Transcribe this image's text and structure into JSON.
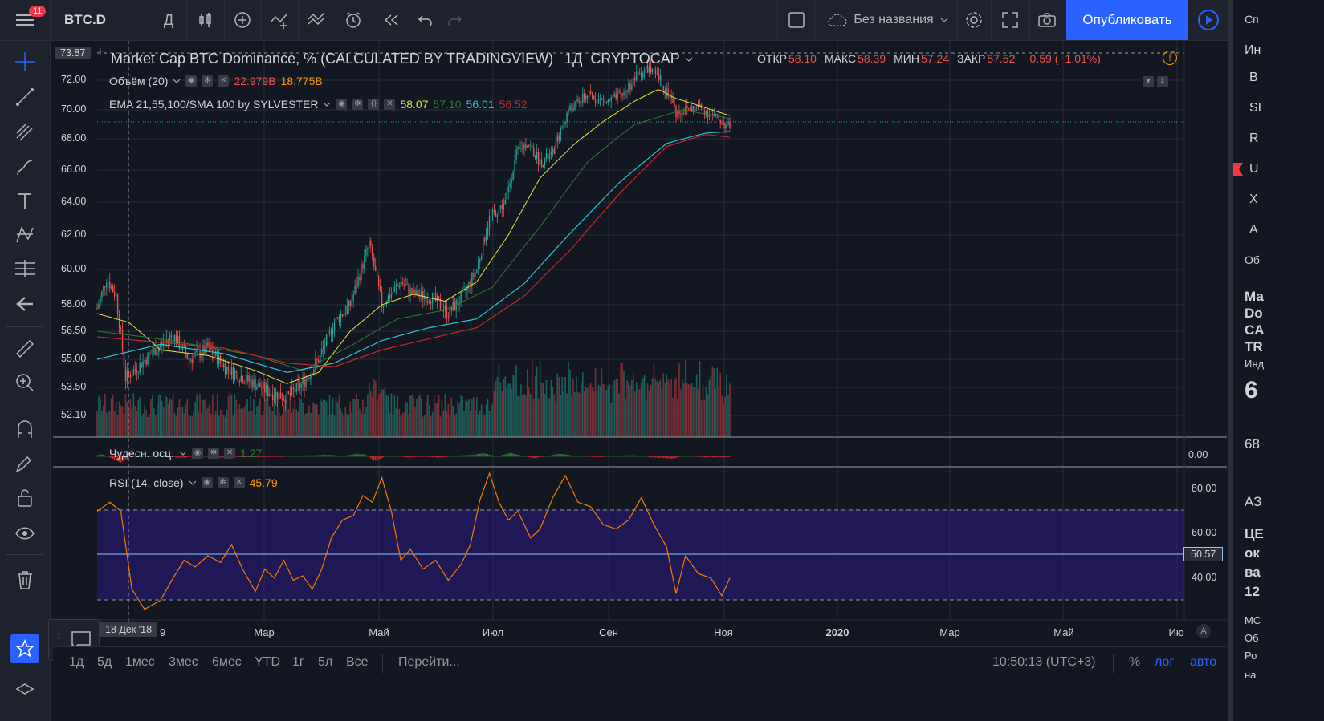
{
  "toolbar": {
    "symbol": "BTC.D",
    "interval": "Д",
    "notif_count": "11",
    "layout_name": "Без названия",
    "publish_label": "Опубликовать"
  },
  "legend": {
    "title": "Market Cap BTC Dominance, % (CALCULATED BY TRADINGVIEW)",
    "timeframe": "1Д",
    "exchange": "CRYPTOCAP",
    "open_label": "ОТКР",
    "open": "58.10",
    "high_label": "МАКС",
    "high": "58.39",
    "low_label": "МИН",
    "low": "57.24",
    "close_label": "ЗАКР",
    "close": "57.52",
    "change": "−0.59 (−1.01%)",
    "volume_label": "Объём (20)",
    "volume_v1": "22.979B",
    "volume_v2": "18.775B",
    "ema_label": "EMA 21,55,100/SMA 100 by SYLVESTER",
    "ema1": "58.07",
    "ema2": "57.10",
    "ema3": "56.01",
    "sma": "56.52",
    "ao_label": "Чудесн. осц.",
    "ao_value": "1.27",
    "rsi_label": "RSI (14, close)",
    "rsi_value": "45.79"
  },
  "price_scale": [
    "72.00",
    "70.00",
    "68.00",
    "66.00",
    "64.00",
    "62.00",
    "60.00",
    "58.00",
    "56.50",
    "55.00",
    "53.50",
    "52.10"
  ],
  "crosshair_price": "73.87",
  "ao_scale": "0.00",
  "rsi_scale": [
    "80.00",
    "60.00",
    "40.00"
  ],
  "rsi_current": "50.57",
  "time_axis": [
    "Мар",
    "Май",
    "Июл",
    "Сен",
    "Ноя",
    "2020",
    "Мар",
    "Май",
    "Ию"
  ],
  "crosshair_date": "18 Дек '18",
  "crosshair_date_suffix": "9",
  "ranges": [
    "1д",
    "5д",
    "1мес",
    "3мес",
    "6мес",
    "YTD",
    "1г",
    "5л",
    "Все"
  ],
  "goto_label": "Перейти...",
  "clock": "10:50:13 (UTC+3)",
  "scale_opts": {
    "pct": "%",
    "log": "лог",
    "auto": "авто"
  },
  "right_panel": {
    "items": [
      "Сп",
      "Ин",
      "В",
      "SI",
      "R",
      "U",
      "X",
      "A",
      "Об"
    ],
    "info": [
      "Ма",
      "Do",
      "CA",
      "TR",
      "Инд",
      "6",
      "68",
      "АЗ",
      "ЦЕ",
      "ок",
      "ва",
      "12",
      "МС",
      "Об",
      "Ро",
      "на"
    ]
  },
  "colors": {
    "background": "#131722",
    "up": "#26a69a",
    "down": "#ef5350",
    "ema1": "#e8e33f",
    "ema2": "#2e7d32",
    "ema3": "#26c6da",
    "sma": "#c62828",
    "rsi": "#f57c00",
    "accent": "#2962ff"
  },
  "chart_data": {
    "type": "candlestick",
    "title": "Market Cap BTC Dominance, % (CALCULATED BY TRADINGVIEW)",
    "x_range": [
      "2018-12",
      "2020-06"
    ],
    "ylim": [
      51.5,
      73.87
    ],
    "last_ohlc": {
      "open": 58.1,
      "high": 58.39,
      "low": 57.24,
      "close": 57.52
    },
    "price_path": [
      [
        0,
        57.8
      ],
      [
        6,
        59.5
      ],
      [
        12,
        58.5
      ],
      [
        18,
        54
      ],
      [
        28,
        54.8
      ],
      [
        38,
        55.6
      ],
      [
        48,
        56.3
      ],
      [
        58,
        55
      ],
      [
        70,
        55.6
      ],
      [
        82,
        54.5
      ],
      [
        95,
        53.9
      ],
      [
        108,
        53.3
      ],
      [
        120,
        53
      ],
      [
        130,
        53.7
      ],
      [
        140,
        55
      ],
      [
        150,
        57
      ],
      [
        160,
        58
      ],
      [
        172,
        61.5
      ],
      [
        180,
        58
      ],
      [
        192,
        59.3
      ],
      [
        200,
        58.6
      ],
      [
        212,
        58.4
      ],
      [
        222,
        57.5
      ],
      [
        232,
        58.6
      ],
      [
        240,
        60
      ],
      [
        248,
        63
      ],
      [
        258,
        64
      ],
      [
        265,
        67
      ],
      [
        272,
        67.8
      ],
      [
        280,
        66.5
      ],
      [
        288,
        67
      ],
      [
        298,
        70
      ],
      [
        310,
        71
      ],
      [
        322,
        70.5
      ],
      [
        332,
        71
      ],
      [
        342,
        72.4
      ],
      [
        348,
        72.8
      ],
      [
        356,
        72
      ],
      [
        362,
        71
      ],
      [
        366,
        69.8
      ],
      [
        372,
        70
      ],
      [
        380,
        70.2
      ],
      [
        386,
        69.8
      ],
      [
        392,
        69.4
      ],
      [
        400,
        68.8
      ]
    ],
    "ema21_path": [
      [
        0,
        57.5
      ],
      [
        20,
        57
      ],
      [
        40,
        55.5
      ],
      [
        70,
        55.2
      ],
      [
        100,
        54.4
      ],
      [
        120,
        53.7
      ],
      [
        140,
        54.3
      ],
      [
        160,
        56.5
      ],
      [
        180,
        58
      ],
      [
        200,
        58.6
      ],
      [
        220,
        58.2
      ],
      [
        240,
        59.3
      ],
      [
        260,
        62
      ],
      [
        280,
        65.5
      ],
      [
        300,
        67.5
      ],
      [
        320,
        69.2
      ],
      [
        340,
        70.6
      ],
      [
        355,
        71.4
      ],
      [
        365,
        70.8
      ],
      [
        380,
        70.3
      ],
      [
        400,
        69.6
      ]
    ],
    "ema55_path": [
      [
        0,
        56.5
      ],
      [
        30,
        56.2
      ],
      [
        60,
        55.8
      ],
      [
        100,
        55.2
      ],
      [
        130,
        54.4
      ],
      [
        160,
        55.7
      ],
      [
        190,
        57.2
      ],
      [
        220,
        57.7
      ],
      [
        250,
        59
      ],
      [
        280,
        62.5
      ],
      [
        310,
        66.5
      ],
      [
        340,
        69
      ],
      [
        370,
        70
      ],
      [
        400,
        69.4
      ]
    ],
    "ema100_path": [
      [
        0,
        55
      ],
      [
        40,
        55.8
      ],
      [
        80,
        55.3
      ],
      [
        120,
        54.3
      ],
      [
        150,
        54.8
      ],
      [
        180,
        56
      ],
      [
        210,
        56.7
      ],
      [
        240,
        57.2
      ],
      [
        270,
        59.2
      ],
      [
        300,
        62.2
      ],
      [
        330,
        65.2
      ],
      [
        360,
        67.7
      ],
      [
        385,
        68.4
      ],
      [
        400,
        68.5
      ]
    ],
    "sma100_path": [
      [
        0,
        56.2
      ],
      [
        40,
        55.9
      ],
      [
        80,
        55.6
      ],
      [
        120,
        54.8
      ],
      [
        150,
        54.6
      ],
      [
        180,
        55.5
      ],
      [
        210,
        56.1
      ],
      [
        240,
        56.7
      ],
      [
        270,
        58.5
      ],
      [
        300,
        61.2
      ],
      [
        330,
        64.5
      ],
      [
        360,
        67.5
      ],
      [
        385,
        68.3
      ],
      [
        400,
        68.1
      ]
    ],
    "rsi_ylim": [
      20,
      90
    ],
    "rsi_path": [
      [
        0,
        70
      ],
      [
        8,
        74
      ],
      [
        15,
        70
      ],
      [
        22,
        35
      ],
      [
        30,
        26
      ],
      [
        40,
        30
      ],
      [
        48,
        40
      ],
      [
        55,
        48
      ],
      [
        62,
        45
      ],
      [
        70,
        50
      ],
      [
        78,
        47
      ],
      [
        85,
        55
      ],
      [
        92,
        44
      ],
      [
        100,
        34
      ],
      [
        106,
        44
      ],
      [
        112,
        40
      ],
      [
        118,
        48
      ],
      [
        124,
        39
      ],
      [
        130,
        41
      ],
      [
        136,
        35
      ],
      [
        142,
        44
      ],
      [
        148,
        58
      ],
      [
        155,
        66
      ],
      [
        162,
        68
      ],
      [
        168,
        77
      ],
      [
        174,
        74
      ],
      [
        180,
        85
      ],
      [
        186,
        70
      ],
      [
        192,
        48
      ],
      [
        198,
        53
      ],
      [
        206,
        44
      ],
      [
        214,
        48
      ],
      [
        222,
        39
      ],
      [
        230,
        46
      ],
      [
        236,
        55
      ],
      [
        242,
        75
      ],
      [
        248,
        87
      ],
      [
        254,
        74
      ],
      [
        260,
        66
      ],
      [
        266,
        70
      ],
      [
        274,
        58
      ],
      [
        280,
        62
      ],
      [
        288,
        76
      ],
      [
        296,
        86
      ],
      [
        304,
        74
      ],
      [
        312,
        72
      ],
      [
        320,
        64
      ],
      [
        328,
        62
      ],
      [
        336,
        66
      ],
      [
        344,
        76
      ],
      [
        352,
        64
      ],
      [
        360,
        54
      ],
      [
        366,
        33
      ],
      [
        372,
        50
      ],
      [
        380,
        42
      ],
      [
        388,
        40
      ],
      [
        395,
        32
      ],
      [
        400,
        40
      ]
    ]
  }
}
